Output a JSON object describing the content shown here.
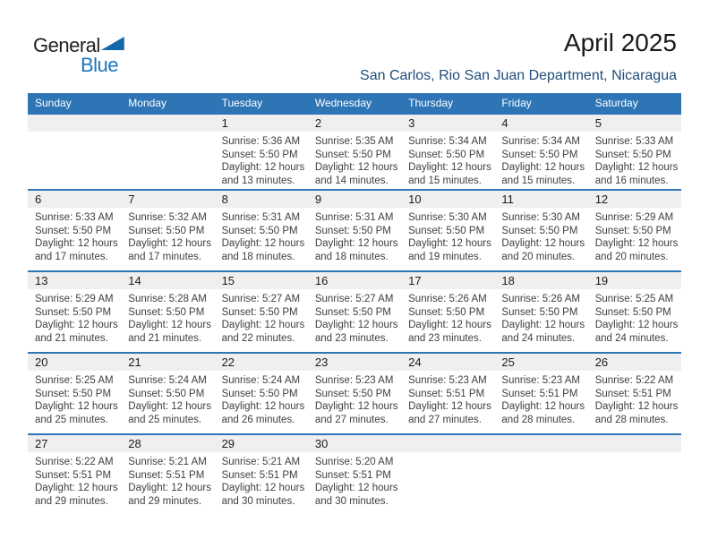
{
  "logo": {
    "part1": "General",
    "part2": "Blue",
    "triangle_icon": "logo-triangle"
  },
  "header": {
    "title": "April 2025",
    "subtitle": "San Carlos, Rio San Juan Department, Nicaragua"
  },
  "colors": {
    "header_blue": "#2E75B6",
    "band_gray": "#EFEFEF",
    "subtitle_blue": "#1F4E79",
    "logo_blue": "#1B75BC",
    "triangle_blue": "#1467A8",
    "logo_black": "#231F20",
    "details_text": "#3F3F3F"
  },
  "calendar": {
    "day_headers": [
      "Sunday",
      "Monday",
      "Tuesday",
      "Wednesday",
      "Thursday",
      "Friday",
      "Saturday"
    ],
    "weeks": [
      [
        null,
        null,
        {
          "day": "1",
          "sunrise": "Sunrise: 5:36 AM",
          "sunset": "Sunset: 5:50 PM",
          "daylight1": "Daylight: 12 hours",
          "daylight2": "and 13 minutes."
        },
        {
          "day": "2",
          "sunrise": "Sunrise: 5:35 AM",
          "sunset": "Sunset: 5:50 PM",
          "daylight1": "Daylight: 12 hours",
          "daylight2": "and 14 minutes."
        },
        {
          "day": "3",
          "sunrise": "Sunrise: 5:34 AM",
          "sunset": "Sunset: 5:50 PM",
          "daylight1": "Daylight: 12 hours",
          "daylight2": "and 15 minutes."
        },
        {
          "day": "4",
          "sunrise": "Sunrise: 5:34 AM",
          "sunset": "Sunset: 5:50 PM",
          "daylight1": "Daylight: 12 hours",
          "daylight2": "and 15 minutes."
        },
        {
          "day": "5",
          "sunrise": "Sunrise: 5:33 AM",
          "sunset": "Sunset: 5:50 PM",
          "daylight1": "Daylight: 12 hours",
          "daylight2": "and 16 minutes."
        }
      ],
      [
        {
          "day": "6",
          "sunrise": "Sunrise: 5:33 AM",
          "sunset": "Sunset: 5:50 PM",
          "daylight1": "Daylight: 12 hours",
          "daylight2": "and 17 minutes."
        },
        {
          "day": "7",
          "sunrise": "Sunrise: 5:32 AM",
          "sunset": "Sunset: 5:50 PM",
          "daylight1": "Daylight: 12 hours",
          "daylight2": "and 17 minutes."
        },
        {
          "day": "8",
          "sunrise": "Sunrise: 5:31 AM",
          "sunset": "Sunset: 5:50 PM",
          "daylight1": "Daylight: 12 hours",
          "daylight2": "and 18 minutes."
        },
        {
          "day": "9",
          "sunrise": "Sunrise: 5:31 AM",
          "sunset": "Sunset: 5:50 PM",
          "daylight1": "Daylight: 12 hours",
          "daylight2": "and 18 minutes."
        },
        {
          "day": "10",
          "sunrise": "Sunrise: 5:30 AM",
          "sunset": "Sunset: 5:50 PM",
          "daylight1": "Daylight: 12 hours",
          "daylight2": "and 19 minutes."
        },
        {
          "day": "11",
          "sunrise": "Sunrise: 5:30 AM",
          "sunset": "Sunset: 5:50 PM",
          "daylight1": "Daylight: 12 hours",
          "daylight2": "and 20 minutes."
        },
        {
          "day": "12",
          "sunrise": "Sunrise: 5:29 AM",
          "sunset": "Sunset: 5:50 PM",
          "daylight1": "Daylight: 12 hours",
          "daylight2": "and 20 minutes."
        }
      ],
      [
        {
          "day": "13",
          "sunrise": "Sunrise: 5:29 AM",
          "sunset": "Sunset: 5:50 PM",
          "daylight1": "Daylight: 12 hours",
          "daylight2": "and 21 minutes."
        },
        {
          "day": "14",
          "sunrise": "Sunrise: 5:28 AM",
          "sunset": "Sunset: 5:50 PM",
          "daylight1": "Daylight: 12 hours",
          "daylight2": "and 21 minutes."
        },
        {
          "day": "15",
          "sunrise": "Sunrise: 5:27 AM",
          "sunset": "Sunset: 5:50 PM",
          "daylight1": "Daylight: 12 hours",
          "daylight2": "and 22 minutes."
        },
        {
          "day": "16",
          "sunrise": "Sunrise: 5:27 AM",
          "sunset": "Sunset: 5:50 PM",
          "daylight1": "Daylight: 12 hours",
          "daylight2": "and 23 minutes."
        },
        {
          "day": "17",
          "sunrise": "Sunrise: 5:26 AM",
          "sunset": "Sunset: 5:50 PM",
          "daylight1": "Daylight: 12 hours",
          "daylight2": "and 23 minutes."
        },
        {
          "day": "18",
          "sunrise": "Sunrise: 5:26 AM",
          "sunset": "Sunset: 5:50 PM",
          "daylight1": "Daylight: 12 hours",
          "daylight2": "and 24 minutes."
        },
        {
          "day": "19",
          "sunrise": "Sunrise: 5:25 AM",
          "sunset": "Sunset: 5:50 PM",
          "daylight1": "Daylight: 12 hours",
          "daylight2": "and 24 minutes."
        }
      ],
      [
        {
          "day": "20",
          "sunrise": "Sunrise: 5:25 AM",
          "sunset": "Sunset: 5:50 PM",
          "daylight1": "Daylight: 12 hours",
          "daylight2": "and 25 minutes."
        },
        {
          "day": "21",
          "sunrise": "Sunrise: 5:24 AM",
          "sunset": "Sunset: 5:50 PM",
          "daylight1": "Daylight: 12 hours",
          "daylight2": "and 25 minutes."
        },
        {
          "day": "22",
          "sunrise": "Sunrise: 5:24 AM",
          "sunset": "Sunset: 5:50 PM",
          "daylight1": "Daylight: 12 hours",
          "daylight2": "and 26 minutes."
        },
        {
          "day": "23",
          "sunrise": "Sunrise: 5:23 AM",
          "sunset": "Sunset: 5:50 PM",
          "daylight1": "Daylight: 12 hours",
          "daylight2": "and 27 minutes."
        },
        {
          "day": "24",
          "sunrise": "Sunrise: 5:23 AM",
          "sunset": "Sunset: 5:51 PM",
          "daylight1": "Daylight: 12 hours",
          "daylight2": "and 27 minutes."
        },
        {
          "day": "25",
          "sunrise": "Sunrise: 5:23 AM",
          "sunset": "Sunset: 5:51 PM",
          "daylight1": "Daylight: 12 hours",
          "daylight2": "and 28 minutes."
        },
        {
          "day": "26",
          "sunrise": "Sunrise: 5:22 AM",
          "sunset": "Sunset: 5:51 PM",
          "daylight1": "Daylight: 12 hours",
          "daylight2": "and 28 minutes."
        }
      ],
      [
        {
          "day": "27",
          "sunrise": "Sunrise: 5:22 AM",
          "sunset": "Sunset: 5:51 PM",
          "daylight1": "Daylight: 12 hours",
          "daylight2": "and 29 minutes."
        },
        {
          "day": "28",
          "sunrise": "Sunrise: 5:21 AM",
          "sunset": "Sunset: 5:51 PM",
          "daylight1": "Daylight: 12 hours",
          "daylight2": "and 29 minutes."
        },
        {
          "day": "29",
          "sunrise": "Sunrise: 5:21 AM",
          "sunset": "Sunset: 5:51 PM",
          "daylight1": "Daylight: 12 hours",
          "daylight2": "and 30 minutes."
        },
        {
          "day": "30",
          "sunrise": "Sunrise: 5:20 AM",
          "sunset": "Sunset: 5:51 PM",
          "daylight1": "Daylight: 12 hours",
          "daylight2": "and 30 minutes."
        },
        null,
        null,
        null
      ]
    ]
  }
}
